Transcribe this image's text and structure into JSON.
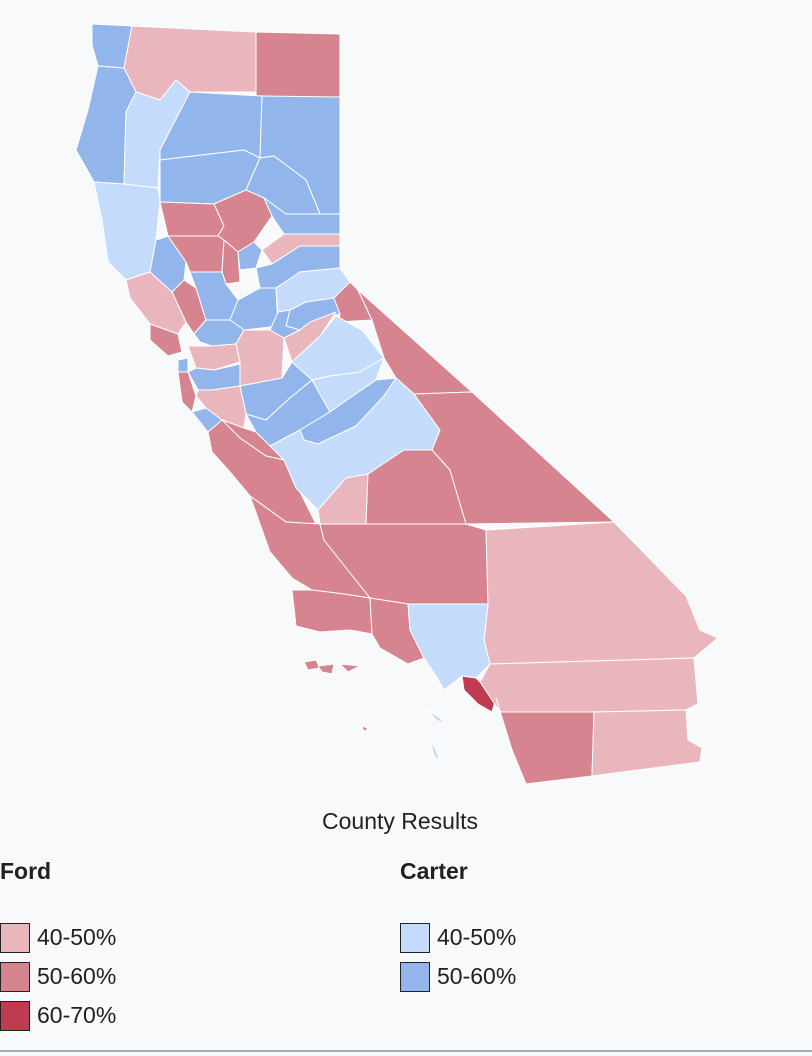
{
  "caption": "County Results",
  "colors": {
    "ford_40_50": "#eab6be",
    "ford_50_60": "#d6848f",
    "ford_60_70": "#c03b4f",
    "carter_40_50": "#c5dbfb",
    "carter_50_60": "#92b5ec",
    "border": "#ffffff"
  },
  "legend": {
    "ford": {
      "title": "Ford",
      "items": [
        {
          "label": "40-50%",
          "color": "#eab6be"
        },
        {
          "label": "50-60%",
          "color": "#d6848f"
        },
        {
          "label": "60-70%",
          "color": "#c03b4f"
        }
      ]
    },
    "carter": {
      "title": "Carter",
      "items": [
        {
          "label": "40-50%",
          "color": "#c5dbfb"
        },
        {
          "label": "50-60%",
          "color": "#92b5ec"
        }
      ]
    }
  }
}
